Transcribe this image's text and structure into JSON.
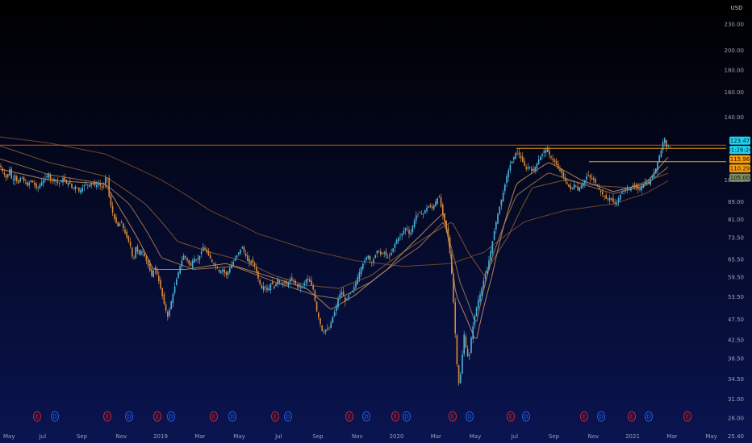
{
  "chart_data": {
    "type": "candlestick",
    "currency": "USD",
    "scale": "log",
    "ylim": [
      24.5,
      262
    ],
    "x_tick_labels": [
      "May",
      "Jul",
      "Sep",
      "Nov",
      "2019",
      "Mar",
      "May",
      "Jul",
      "Sep",
      "Nov",
      "2020",
      "Mar",
      "May",
      "Jul",
      "Sep",
      "Nov",
      "2021",
      "Mar",
      "May"
    ],
    "y_tick_labels": [
      "25.40",
      "28.00",
      "31.00",
      "34.50",
      "38.50",
      "42.50",
      "47.50",
      "53.50",
      "59.50",
      "65.50",
      "73.50",
      "81.00",
      "89.00",
      "100.00",
      "140.00",
      "160.00",
      "180.00",
      "200.00",
      "230.00"
    ],
    "y_tick_values": [
      25.4,
      28,
      31,
      34.5,
      38.5,
      42.5,
      47.5,
      53.5,
      59.5,
      65.5,
      73.5,
      81,
      89,
      100,
      140,
      160,
      180,
      200,
      230
    ],
    "price_path": [
      [
        0,
        108
      ],
      [
        4,
        104
      ],
      [
        8,
        101
      ],
      [
        12,
        106
      ],
      [
        15,
        99
      ],
      [
        19,
        103
      ],
      [
        22,
        97
      ],
      [
        26,
        102
      ],
      [
        30,
        99
      ],
      [
        34,
        97
      ],
      [
        38,
        100
      ],
      [
        42,
        98
      ],
      [
        46,
        95
      ],
      [
        50,
        98
      ],
      [
        54,
        100
      ],
      [
        58,
        102
      ],
      [
        61,
        104
      ],
      [
        63,
        99
      ],
      [
        66,
        101
      ],
      [
        70,
        99
      ],
      [
        74,
        98
      ],
      [
        78,
        101
      ],
      [
        82,
        98
      ],
      [
        86,
        99
      ],
      [
        90,
        95
      ],
      [
        94,
        97
      ],
      [
        98,
        94
      ],
      [
        102,
        96
      ],
      [
        106,
        98
      ],
      [
        110,
        97
      ],
      [
        114,
        99
      ],
      [
        118,
        97
      ],
      [
        122,
        98
      ],
      [
        126,
        96
      ],
      [
        130,
        97
      ],
      [
        132,
        108
      ],
      [
        134,
        94
      ],
      [
        138,
        86
      ],
      [
        142,
        81
      ],
      [
        146,
        78
      ],
      [
        150,
        80
      ],
      [
        154,
        76
      ],
      [
        158,
        73
      ],
      [
        162,
        70
      ],
      [
        165,
        64
      ],
      [
        168,
        70
      ],
      [
        172,
        67
      ],
      [
        176,
        69
      ],
      [
        180,
        66
      ],
      [
        184,
        63
      ],
      [
        188,
        60
      ],
      [
        192,
        63
      ],
      [
        196,
        59
      ],
      [
        200,
        55
      ],
      [
        204,
        51
      ],
      [
        208,
        48
      ],
      [
        212,
        52
      ],
      [
        216,
        56
      ],
      [
        220,
        60
      ],
      [
        224,
        64
      ],
      [
        228,
        67
      ],
      [
        232,
        65
      ],
      [
        236,
        63
      ],
      [
        240,
        66
      ],
      [
        244,
        65
      ],
      [
        248,
        67
      ],
      [
        252,
        70
      ],
      [
        256,
        68
      ],
      [
        260,
        66
      ],
      [
        264,
        64
      ],
      [
        268,
        63
      ],
      [
        272,
        61
      ],
      [
        276,
        62
      ],
      [
        280,
        60
      ],
      [
        284,
        62
      ],
      [
        288,
        64
      ],
      [
        292,
        66
      ],
      [
        296,
        68
      ],
      [
        300,
        70
      ],
      [
        304,
        67
      ],
      [
        308,
        64
      ],
      [
        312,
        65
      ],
      [
        316,
        63
      ],
      [
        320,
        59
      ],
      [
        324,
        56
      ],
      [
        328,
        57
      ],
      [
        332,
        55
      ],
      [
        336,
        58
      ],
      [
        340,
        56
      ],
      [
        344,
        59
      ],
      [
        348,
        57
      ],
      [
        352,
        58
      ],
      [
        356,
        57
      ],
      [
        360,
        59
      ],
      [
        364,
        58
      ],
      [
        368,
        57
      ],
      [
        372,
        56
      ],
      [
        376,
        57
      ],
      [
        380,
        59
      ],
      [
        384,
        58
      ],
      [
        388,
        56
      ],
      [
        392,
        50
      ],
      [
        396,
        47
      ],
      [
        400,
        44
      ],
      [
        404,
        45
      ],
      [
        408,
        45
      ],
      [
        412,
        48
      ],
      [
        416,
        50
      ],
      [
        420,
        54
      ],
      [
        424,
        55
      ],
      [
        428,
        52
      ],
      [
        432,
        54
      ],
      [
        436,
        55
      ],
      [
        440,
        57
      ],
      [
        444,
        60
      ],
      [
        448,
        63
      ],
      [
        452,
        65
      ],
      [
        456,
        67
      ],
      [
        460,
        64
      ],
      [
        464,
        66
      ],
      [
        468,
        69
      ],
      [
        472,
        67
      ],
      [
        476,
        68
      ],
      [
        480,
        66
      ],
      [
        484,
        67
      ],
      [
        488,
        70
      ],
      [
        492,
        73
      ],
      [
        496,
        74
      ],
      [
        500,
        76
      ],
      [
        504,
        78
      ],
      [
        508,
        74
      ],
      [
        512,
        79
      ],
      [
        516,
        83
      ],
      [
        520,
        84
      ],
      [
        524,
        83
      ],
      [
        528,
        86
      ],
      [
        532,
        87
      ],
      [
        536,
        86
      ],
      [
        540,
        89
      ],
      [
        544,
        92
      ],
      [
        548,
        84
      ],
      [
        552,
        79
      ],
      [
        556,
        73
      ],
      [
        560,
        60
      ],
      [
        563,
        48
      ],
      [
        566,
        38
      ],
      [
        569,
        33
      ],
      [
        572,
        37
      ],
      [
        575,
        44
      ],
      [
        578,
        40
      ],
      [
        581,
        38
      ],
      [
        584,
        43
      ],
      [
        588,
        48
      ],
      [
        592,
        52
      ],
      [
        596,
        55
      ],
      [
        600,
        59
      ],
      [
        604,
        62
      ],
      [
        608,
        68
      ],
      [
        612,
        75
      ],
      [
        616,
        82
      ],
      [
        620,
        88
      ],
      [
        624,
        94
      ],
      [
        628,
        102
      ],
      [
        632,
        108
      ],
      [
        636,
        112
      ],
      [
        640,
        117
      ],
      [
        644,
        114
      ],
      [
        648,
        110
      ],
      [
        652,
        106
      ],
      [
        656,
        108
      ],
      [
        660,
        104
      ],
      [
        664,
        108
      ],
      [
        668,
        112
      ],
      [
        672,
        115
      ],
      [
        676,
        118
      ],
      [
        680,
        115
      ],
      [
        684,
        112
      ],
      [
        688,
        110
      ],
      [
        692,
        106
      ],
      [
        696,
        104
      ],
      [
        700,
        100
      ],
      [
        704,
        97
      ],
      [
        708,
        95
      ],
      [
        712,
        98
      ],
      [
        716,
        95
      ],
      [
        720,
        97
      ],
      [
        724,
        99
      ],
      [
        728,
        103
      ],
      [
        732,
        101
      ],
      [
        736,
        100
      ],
      [
        740,
        97
      ],
      [
        744,
        94
      ],
      [
        748,
        92
      ],
      [
        752,
        90
      ],
      [
        756,
        91
      ],
      [
        760,
        89
      ],
      [
        764,
        88
      ],
      [
        768,
        92
      ],
      [
        772,
        94
      ],
      [
        776,
        96
      ],
      [
        780,
        95
      ],
      [
        784,
        97
      ],
      [
        788,
        96
      ],
      [
        792,
        95
      ],
      [
        796,
        97
      ],
      [
        800,
        99
      ],
      [
        804,
        98
      ],
      [
        808,
        102
      ],
      [
        812,
        105
      ],
      [
        816,
        112
      ],
      [
        820,
        118
      ],
      [
        823,
        127
      ],
      [
        826,
        119
      ],
      [
        829,
        121
      ],
      [
        832,
        118
      ]
    ],
    "moving_averages": [
      {
        "color": "#7a4a2c",
        "path": [
          [
            0,
            126
          ],
          [
            60,
            122
          ],
          [
            130,
            115
          ],
          [
            200,
            100
          ],
          [
            260,
            85
          ],
          [
            320,
            75
          ],
          [
            380,
            69
          ],
          [
            440,
            65
          ],
          [
            500,
            63
          ],
          [
            560,
            64
          ],
          [
            600,
            68
          ],
          [
            650,
            80
          ],
          [
            700,
            85
          ],
          [
            760,
            88
          ],
          [
            800,
            93
          ],
          [
            830,
            100
          ]
        ]
      },
      {
        "color": "#8a5a35",
        "path": [
          [
            0,
            120
          ],
          [
            60,
            110
          ],
          [
            130,
            102
          ],
          [
            180,
            88
          ],
          [
            220,
            72
          ],
          [
            260,
            68
          ],
          [
            300,
            65
          ],
          [
            340,
            60
          ],
          [
            380,
            57
          ],
          [
            420,
            56
          ],
          [
            460,
            60
          ],
          [
            520,
            72
          ],
          [
            560,
            80
          ],
          [
            580,
            68
          ],
          [
            600,
            60
          ],
          [
            630,
            74
          ],
          [
            660,
            96
          ],
          [
            700,
            100
          ],
          [
            740,
            97
          ],
          [
            780,
            96
          ],
          [
            830,
            104
          ]
        ]
      },
      {
        "color": "#a77a4e",
        "path": [
          [
            0,
            112
          ],
          [
            60,
            103
          ],
          [
            130,
            98
          ],
          [
            160,
            88
          ],
          [
            200,
            66
          ],
          [
            240,
            62
          ],
          [
            290,
            63
          ],
          [
            340,
            58
          ],
          [
            390,
            54
          ],
          [
            420,
            53
          ],
          [
            460,
            58
          ],
          [
            520,
            70
          ],
          [
            550,
            80
          ],
          [
            570,
            58
          ],
          [
            590,
            46
          ],
          [
            610,
            66
          ],
          [
            640,
            92
          ],
          [
            680,
            104
          ],
          [
            720,
            98
          ],
          [
            760,
            93
          ],
          [
            800,
            97
          ],
          [
            830,
            108
          ]
        ]
      },
      {
        "color": "#c49060",
        "path": [
          [
            0,
            106
          ],
          [
            60,
            100
          ],
          [
            130,
            98
          ],
          [
            150,
            85
          ],
          [
            190,
            62
          ],
          [
            230,
            62
          ],
          [
            280,
            64
          ],
          [
            330,
            60
          ],
          [
            380,
            56
          ],
          [
            410,
            50
          ],
          [
            440,
            54
          ],
          [
            480,
            62
          ],
          [
            520,
            74
          ],
          [
            550,
            84
          ],
          [
            565,
            54
          ],
          [
            590,
            42
          ],
          [
            610,
            60
          ],
          [
            640,
            98
          ],
          [
            680,
            110
          ],
          [
            720,
            100
          ],
          [
            760,
            94
          ],
          [
            800,
            98
          ],
          [
            830,
            114
          ]
        ]
      }
    ],
    "price_badges": [
      {
        "label": "123.47",
        "value": 123.47,
        "color": "#22d3ee",
        "text_color": "#04212b"
      },
      {
        "label": "01:26:24",
        "value": 120.0,
        "color": "#22d3ee",
        "text_color": "#04212b"
      },
      {
        "label": "115.96",
        "value": 115.96,
        "color": "#f59e0b",
        "text_color": "#2a1500"
      },
      {
        "label": "110.29",
        "value": 110.29,
        "color": "#f59e0b",
        "text_color": "#2a1500"
      },
      {
        "label": "105.00",
        "value": 105.0,
        "color": "#7f8c6a",
        "text_color": "#101505"
      }
    ],
    "horizontal_levels": [
      {
        "value": 118.5,
        "x_start": 640,
        "color": "#f59e0b"
      },
      {
        "value": 110.29,
        "x_start": 730,
        "color": "#f59e0b"
      },
      {
        "value": 120.5,
        "x_start": 0,
        "color": "#b45309"
      }
    ],
    "events": [
      {
        "label": "E",
        "x": 46,
        "color": "#dc2626"
      },
      {
        "label": "D",
        "x": 68,
        "color": "#2563eb"
      },
      {
        "label": "E",
        "x": 133,
        "color": "#dc2626"
      },
      {
        "label": "D",
        "x": 160,
        "color": "#2563eb"
      },
      {
        "label": "E",
        "x": 195,
        "color": "#dc2626"
      },
      {
        "label": "D",
        "x": 212,
        "color": "#2563eb"
      },
      {
        "label": "E",
        "x": 265,
        "color": "#dc2626"
      },
      {
        "label": "D",
        "x": 288,
        "color": "#2563eb"
      },
      {
        "label": "E",
        "x": 341,
        "color": "#dc2626"
      },
      {
        "label": "D",
        "x": 357,
        "color": "#2563eb"
      },
      {
        "label": "E",
        "x": 433,
        "color": "#dc2626"
      },
      {
        "label": "D",
        "x": 454,
        "color": "#2563eb"
      },
      {
        "label": "E",
        "x": 490,
        "color": "#dc2626"
      },
      {
        "label": "D",
        "x": 504,
        "color": "#2563eb"
      },
      {
        "label": "E",
        "x": 561,
        "color": "#dc2626"
      },
      {
        "label": "D",
        "x": 582,
        "color": "#2563eb"
      },
      {
        "label": "E",
        "x": 633,
        "color": "#dc2626"
      },
      {
        "label": "D",
        "x": 652,
        "color": "#2563eb"
      },
      {
        "label": "E",
        "x": 724,
        "color": "#dc2626"
      },
      {
        "label": "D",
        "x": 745,
        "color": "#2563eb"
      },
      {
        "label": "E",
        "x": 783,
        "color": "#dc2626"
      },
      {
        "label": "D",
        "x": 804,
        "color": "#2563eb"
      },
      {
        "label": "E",
        "x": 852,
        "color": "#dc2626"
      }
    ],
    "colors": {
      "background_top": "#000000",
      "background_bottom": "#0a1450",
      "up": "#4fb3d9",
      "down": "#d98a3a"
    }
  }
}
